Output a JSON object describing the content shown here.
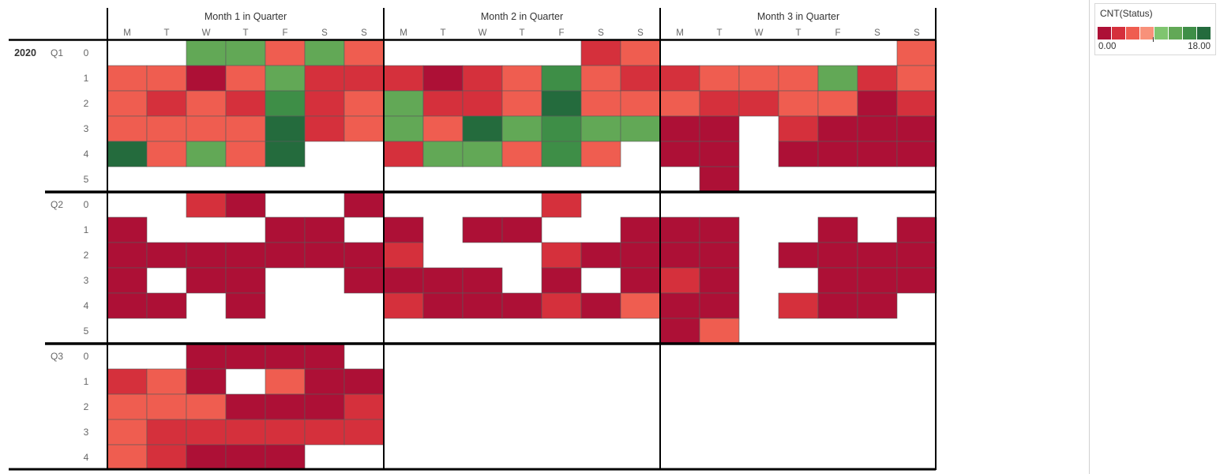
{
  "chart_data": {
    "type": "heatmap",
    "measure": "CNT(Status)",
    "color_range": [
      0,
      18
    ],
    "year": "2020",
    "columns": [
      "Month 1 in Quarter",
      "Month 2 in Quarter",
      "Month 3 in Quarter"
    ],
    "weekdays": [
      "M",
      "T",
      "W",
      "T",
      "F",
      "S",
      "S"
    ],
    "quarters": [
      {
        "label": "Q1",
        "weeks": [
          "0",
          "1",
          "2",
          "3",
          "4",
          "5"
        ],
        "months": [
          [
            [
              null,
              null,
              12,
              12,
              6,
              12,
              5
            ],
            [
              5,
              5,
              1,
              5,
              12,
              3,
              3
            ],
            [
              5,
              3,
              5,
              3,
              14,
              3,
              6
            ],
            [
              5,
              6,
              5,
              5,
              16,
              3,
              6
            ],
            [
              16,
              6,
              12,
              5,
              18,
              null,
              null
            ],
            [
              null,
              null,
              null,
              null,
              null,
              null,
              null
            ]
          ],
          [
            [
              null,
              null,
              null,
              null,
              null,
              3,
              5
            ],
            [
              3,
              1,
              3,
              6,
              14,
              5,
              3
            ],
            [
              12,
              3,
              3,
              6,
              18,
              5,
              5
            ],
            [
              12,
              6,
              18,
              12,
              14,
              12,
              12
            ],
            [
              3,
              12,
              12,
              6,
              14,
              6,
              null
            ],
            [
              null,
              null,
              null,
              null,
              null,
              null,
              null
            ]
          ],
          [
            [
              null,
              null,
              null,
              null,
              null,
              null,
              5
            ],
            [
              3,
              5,
              6,
              6,
              12,
              3,
              5
            ],
            [
              5,
              3,
              3,
              5,
              6,
              1,
              3
            ],
            [
              1,
              1,
              null,
              3,
              1,
              1,
              1
            ],
            [
              1,
              1,
              null,
              1,
              1,
              1,
              1
            ],
            [
              null,
              1,
              null,
              null,
              null,
              null,
              null
            ]
          ]
        ]
      },
      {
        "label": "Q2",
        "weeks": [
          "0",
          "1",
          "2",
          "3",
          "4",
          "5"
        ],
        "months": [
          [
            [
              null,
              null,
              3,
              1,
              null,
              null,
              1
            ],
            [
              1,
              null,
              null,
              null,
              1,
              1,
              null
            ],
            [
              1,
              1,
              1,
              1,
              1,
              1,
              1
            ],
            [
              1,
              null,
              1,
              1,
              null,
              null,
              1
            ],
            [
              1,
              1,
              null,
              1,
              null,
              null,
              null
            ],
            [
              null,
              null,
              null,
              null,
              null,
              null,
              null
            ]
          ],
          [
            [
              null,
              null,
              null,
              null,
              3,
              null,
              null
            ],
            [
              1,
              null,
              1,
              1,
              null,
              null,
              1
            ],
            [
              3,
              null,
              null,
              null,
              3,
              1,
              1
            ],
            [
              1,
              1,
              1,
              null,
              1,
              null,
              1
            ],
            [
              3,
              1,
              1,
              1,
              3,
              1,
              5
            ],
            [
              null,
              null,
              null,
              null,
              null,
              null,
              null
            ]
          ],
          [
            [
              null,
              null,
              null,
              null,
              null,
              null,
              null
            ],
            [
              1,
              1,
              null,
              null,
              1,
              null,
              1
            ],
            [
              1,
              1,
              null,
              1,
              1,
              1,
              1
            ],
            [
              3,
              1,
              null,
              null,
              1,
              1,
              1
            ],
            [
              1,
              1,
              null,
              3,
              1,
              1,
              null
            ],
            [
              1,
              5,
              null,
              null,
              null,
              null,
              null
            ]
          ]
        ]
      },
      {
        "label": "Q3",
        "weeks": [
          "0",
          "1",
          "2",
          "3",
          "4"
        ],
        "months": [
          [
            [
              null,
              null,
              1,
              1,
              1,
              1,
              null
            ],
            [
              3,
              5,
              1,
              null,
              5,
              1,
              1
            ],
            [
              5,
              5,
              5,
              1,
              1,
              1,
              3
            ],
            [
              5,
              3,
              3,
              3,
              3,
              3,
              3
            ],
            [
              5,
              3,
              1,
              1,
              1,
              null,
              null
            ]
          ],
          [
            [
              null,
              null,
              null,
              null,
              null,
              null,
              null
            ],
            [
              null,
              null,
              null,
              null,
              null,
              null,
              null
            ],
            [
              null,
              null,
              null,
              null,
              null,
              null,
              null
            ],
            [
              null,
              null,
              null,
              null,
              null,
              null,
              null
            ],
            [
              null,
              null,
              null,
              null,
              null,
              null,
              null
            ]
          ],
          [
            [
              null,
              null,
              null,
              null,
              null,
              null,
              null
            ],
            [
              null,
              null,
              null,
              null,
              null,
              null,
              null
            ],
            [
              null,
              null,
              null,
              null,
              null,
              null,
              null
            ],
            [
              null,
              null,
              null,
              null,
              null,
              null,
              null
            ],
            [
              null,
              null,
              null,
              null,
              null,
              null,
              null
            ]
          ]
        ]
      }
    ]
  },
  "legend": {
    "title": "CNT(Status)",
    "min_label": "0.00",
    "max_label": "18.00",
    "colors": [
      "#ad1036",
      "#d5303c",
      "#ef5d50",
      "#f8917a",
      "#7fc56f",
      "#62a856",
      "#3e8e47",
      "#246b3d"
    ]
  }
}
